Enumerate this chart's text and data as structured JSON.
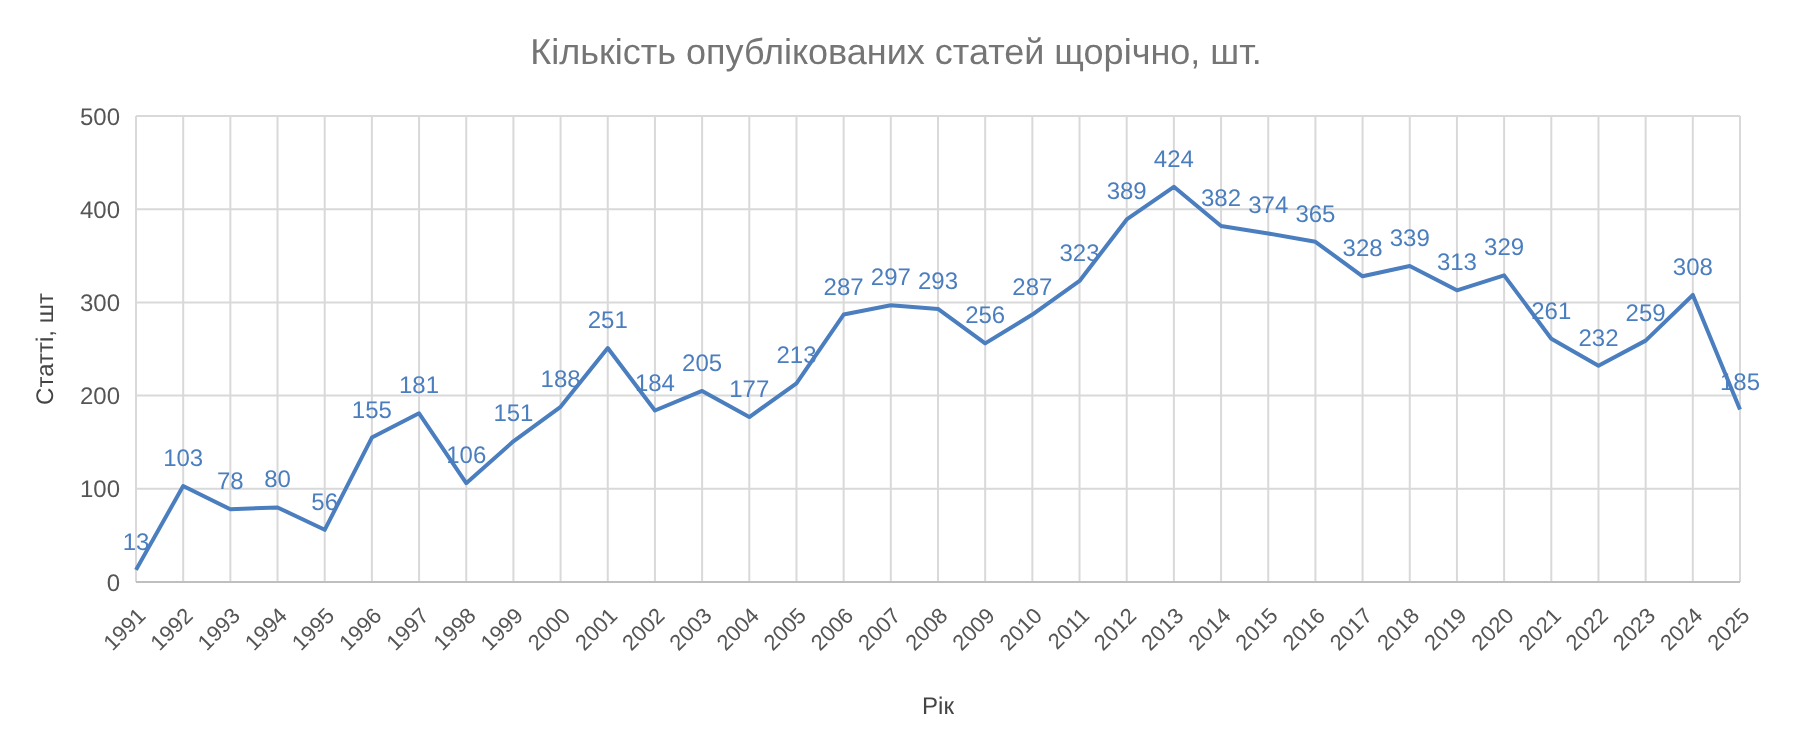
{
  "chart_data": {
    "type": "line",
    "title": "Кількість опублікованих статей щорічно, шт.",
    "xlabel": "Рік",
    "ylabel": "Статті, шт",
    "categories": [
      "1991",
      "1992",
      "1993",
      "1994",
      "1995",
      "1996",
      "1997",
      "1998",
      "1999",
      "2000",
      "2001",
      "2002",
      "2003",
      "2004",
      "2005",
      "2006",
      "2007",
      "2008",
      "2009",
      "2010",
      "2011",
      "2012",
      "2013",
      "2014",
      "2015",
      "2016",
      "2017",
      "2018",
      "2019",
      "2020",
      "2021",
      "2022",
      "2023",
      "2024",
      "2025"
    ],
    "series": [
      {
        "color": "#4a7ebf",
        "values": [
          13,
          103,
          78,
          80,
          56,
          155,
          181,
          106,
          151,
          188,
          251,
          184,
          205,
          177,
          213,
          287,
          297,
          293,
          256,
          287,
          323,
          389,
          424,
          382,
          374,
          365,
          328,
          339,
          313,
          329,
          261,
          232,
          259,
          308,
          185
        ]
      }
    ],
    "ylim": [
      0,
      500
    ],
    "yticks": [
      0,
      100,
      200,
      300,
      400,
      500
    ],
    "grid": true,
    "data_labels": true,
    "marker": "none",
    "line_style": "solid"
  }
}
